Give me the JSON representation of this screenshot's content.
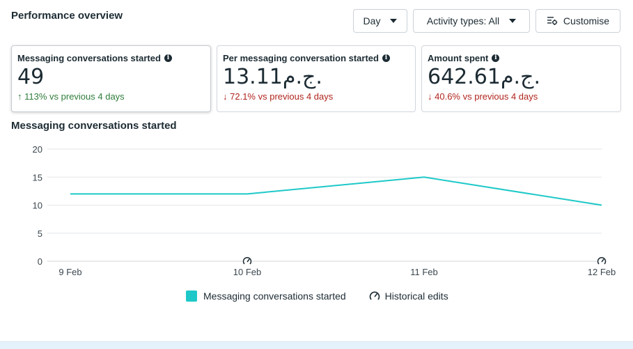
{
  "header": {
    "title": "Performance overview",
    "day_label": "Day",
    "activity_label": "Activity types: All",
    "customise_label": "Customise"
  },
  "cards": [
    {
      "label": "Messaging conversations started",
      "value": "49",
      "arrow": "↑",
      "change": "113% vs previous 4 days",
      "direction": "up"
    },
    {
      "label": "Per messaging conversation started",
      "value": "13.11ج.م.",
      "arrow": "↓",
      "change": "72.1% vs previous 4 days",
      "direction": "down"
    },
    {
      "label": "Amount spent",
      "value": "642.61ج.م.",
      "arrow": "↓",
      "change": "40.6% vs previous 4 days",
      "direction": "down"
    }
  ],
  "chart_data": {
    "type": "line",
    "title": "Messaging conversations started",
    "categories": [
      "9 Feb",
      "10 Feb",
      "11 Feb",
      "12 Feb"
    ],
    "series": [
      {
        "name": "Messaging conversations started",
        "values": [
          12,
          12,
          15,
          10
        ],
        "color": "#1ec8c8"
      }
    ],
    "ylim": [
      0,
      20
    ],
    "yticks": [
      0,
      5,
      10,
      15,
      20
    ],
    "historical_edit_dates": [
      "10 Feb",
      "12 Feb"
    ],
    "grid": true,
    "legend_position": "bottom"
  },
  "legend": {
    "series_label": "Messaging conversations started",
    "edits_label": "Historical edits"
  }
}
